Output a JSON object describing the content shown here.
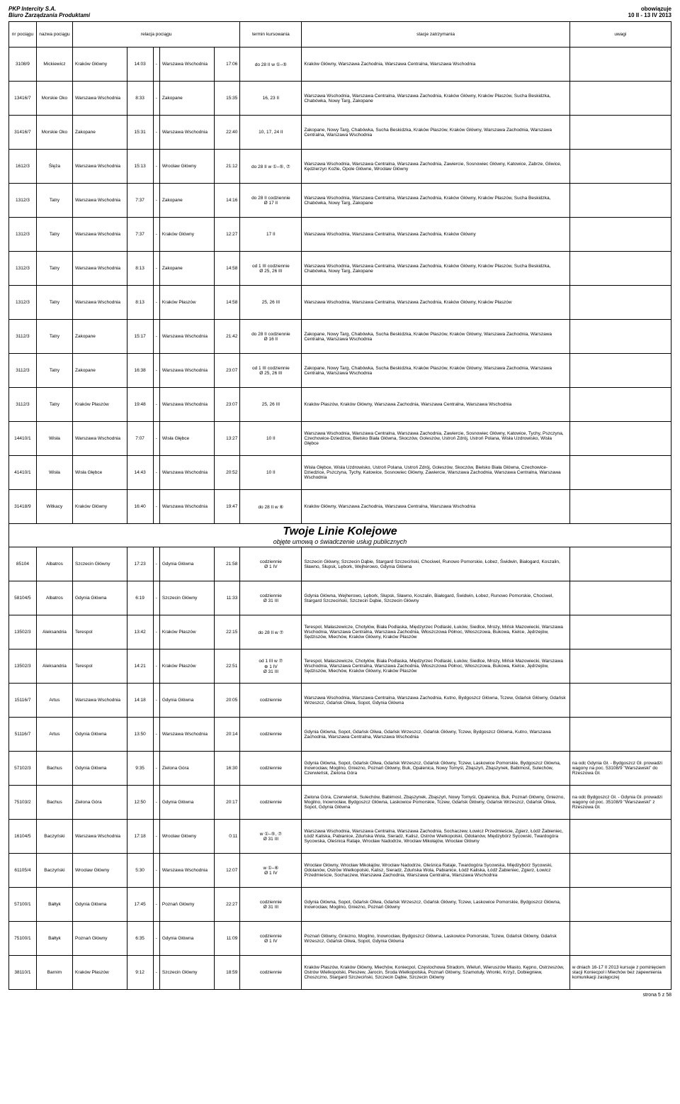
{
  "header": {
    "company": "PKP Intercity S.A.",
    "dept": "Biuro Zarządzania Produktami",
    "obow": "obowiązuje",
    "period": "10 II - 13 IV 2013"
  },
  "columns": {
    "nr": "nr pociągu",
    "name": "nazwa pociągu",
    "relacja": "relacja pociągu",
    "termin": "termin kursowania",
    "stacje": "stacje zatrzymania",
    "uwagi": "uwagi"
  },
  "section": {
    "title": "Twoje Linie Kolejowe",
    "sub": "objęte umową o świadczenie usług publicznych"
  },
  "rows1": [
    {
      "nr": "3108/9",
      "name": "Mickiewicz",
      "from": "Kraków Główny",
      "dep": "14:03",
      "to": "Warszawa Wschodnia",
      "arr": "17:06",
      "term": "do 28 II w ①–⑤",
      "stacje": "Kraków Główny, Warszawa Zachodnia, Warszawa Centralna, Warszawa Wschodnia",
      "uwagi": ""
    },
    {
      "nr": "13416/7",
      "name": "Morskie Oko",
      "from": "Warszawa Wschodnia",
      "dep": "8:33",
      "to": "Zakopane",
      "arr": "15:35",
      "term": "16, 23 II",
      "stacje": "Warszawa Wschodnia, Warszawa Centralna, Warszawa Zachodnia, Kraków Główny, Kraków Płaszów, Sucha Beskidzka, Chabówka, Nowy Targ, Zakopane",
      "uwagi": ""
    },
    {
      "nr": "31416/7",
      "name": "Morskie Oko",
      "from": "Zakopane",
      "dep": "15:31",
      "to": "Warszawa Wschodnia",
      "arr": "22:40",
      "term": "10, 17, 24 II",
      "stacje": "Zakopane, Nowy Targ, Chabówka, Sucha Beskidzka, Kraków Płaszów, Kraków Główny, Warszawa Zachodnia, Warszawa Centralna, Warszawa Wschodnia",
      "uwagi": ""
    },
    {
      "nr": "1612/3",
      "name": "Ślęża",
      "from": "Warszawa Wschodnia",
      "dep": "15:13",
      "to": "Wrocław Główny",
      "arr": "21:12",
      "term": "do 28 II w ①–⑤, ⑦",
      "stacje": "Warszawa Wschodnia, Warszawa Centralna, Warszawa Zachodnia, Zawiercie, Sosnowiec Główny, Katowice, Zabrze, Gliwice, Kędzierzyn Koźle, Opole Główne, Wrocław Główny",
      "uwagi": ""
    },
    {
      "nr": "1312/3",
      "name": "Tatry",
      "from": "Warszawa Wschodnia",
      "dep": "7:37",
      "to": "Zakopane",
      "arr": "14:16",
      "term": "do 28 II codziennie\nØ 17 II",
      "stacje": "Warszawa Wschodnia, Warszawa Centralna, Warszawa Zachodnia, Kraków Główny, Kraków Płaszów, Sucha Beskidzka, Chabówka, Nowy Targ, Zakopane",
      "uwagi": ""
    },
    {
      "nr": "1312/3",
      "name": "Tatry",
      "from": "Warszawa Wschodnia",
      "dep": "7:37",
      "to": "Kraków Główny",
      "arr": "12:27",
      "term": "17 II",
      "stacje": "Warszawa Wschodnia, Warszawa Centralna, Warszawa Zachodnia, Kraków Główny",
      "uwagi": ""
    },
    {
      "nr": "1312/3",
      "name": "Tatry",
      "from": "Warszawa Wschodnia",
      "dep": "8:13",
      "to": "Zakopane",
      "arr": "14:58",
      "term": "od 1 III codziennie\nØ 25, 26 III",
      "stacje": "Warszawa Wschodnia, Warszawa Centralna, Warszawa Zachodnia, Kraków Główny, Kraków Płaszów, Sucha Beskidzka, Chabówka, Nowy Targ, Zakopane",
      "uwagi": ""
    },
    {
      "nr": "1312/3",
      "name": "Tatry",
      "from": "Warszawa Wschodnia",
      "dep": "8:13",
      "to": "Kraków Płaszów",
      "arr": "14:58",
      "term": "25, 26 III",
      "stacje": "Warszawa Wschodnia, Warszawa Centralna, Warszawa Zachodnia, Kraków Główny, Kraków Płaszów",
      "uwagi": ""
    },
    {
      "nr": "3112/3",
      "name": "Tatry",
      "from": "Zakopane",
      "dep": "15:17",
      "to": "Warszawa Wschodnia",
      "arr": "21:42",
      "term": "do 28 II codziennie\nØ 16 II",
      "stacje": "Zakopane, Nowy Targ, Chabówka, Sucha Beskidzka, Kraków Płaszów, Kraków Główny, Warszawa Zachodnia, Warszawa Centralna, Warszawa Wschodnia",
      "uwagi": ""
    },
    {
      "nr": "3112/3",
      "name": "Tatry",
      "from": "Zakopane",
      "dep": "16:38",
      "to": "Warszawa Wschodnia",
      "arr": "23:07",
      "term": "od 1 III codziennie\nØ 25, 26 III",
      "stacje": "Zakopane, Nowy Targ, Chabówka, Sucha Beskidzka, Kraków Płaszów, Kraków Główny, Warszawa Zachodnia, Warszawa Centralna, Warszawa Wschodnia",
      "uwagi": ""
    },
    {
      "nr": "3112/3",
      "name": "Tatry",
      "from": "Kraków Płaszów",
      "dep": "19:48",
      "to": "Warszawa Wschodnia",
      "arr": "23:07",
      "term": "25, 26 III",
      "stacje": "Kraków Płaszów, Kraków Główny, Warszawa Zachodnia, Warszawa Centralna, Warszawa Wschodnia",
      "uwagi": ""
    },
    {
      "nr": "14410/1",
      "name": "Wisła",
      "from": "Warszawa Wschodnia",
      "dep": "7:07",
      "to": "Wisła Głębce",
      "arr": "13:27",
      "term": "10 II",
      "stacje": "Warszawa Wschodnia, Warszawa Centralna, Warszawa Zachodnia, Zawiercie, Sosnowiec Główny, Katowice, Tychy, Pszczyna, Czechowice-Dziedzice, Bielsko Biała Główna, Skoczów, Goleszów, Ustroń Zdrój, Ustroń Polana, Wisła Uzdrowisko, Wisła Głębce",
      "uwagi": ""
    },
    {
      "nr": "41410/1",
      "name": "Wisła",
      "from": "Wisła Głębce",
      "dep": "14:43",
      "to": "Warszawa Wschodnia",
      "arr": "20:52",
      "term": "10 II",
      "stacje": "Wisła Głębce, Wisła Uzdrowisko, Ustroń Polana, Ustroń Zdrój, Goleszów, Skoczów, Bielsko Biała Główna, Czechowice-Dziedzice, Pszczyna, Tychy, Katowice, Sosnowiec Główny, Zawiercie, Warszawa Zachodnia, Warszawa Centralna, Warszawa Wschodnia",
      "uwagi": ""
    },
    {
      "nr": "31418/9",
      "name": "Witkacy",
      "from": "Kraków Główny",
      "dep": "16:40",
      "to": "Warszawa Wschodnia",
      "arr": "19:47",
      "term": "do 28 II w ⑥",
      "stacje": "Kraków Główny, Warszawa Zachodnia, Warszawa Centralna, Warszawa Wschodnia",
      "uwagi": ""
    }
  ],
  "rows2": [
    {
      "nr": "85104",
      "name": "Albatros",
      "from": "Szczecin Główny",
      "dep": "17:23",
      "to": "Gdynia Główna",
      "arr": "21:58",
      "term": "codziennie\nØ 1 IV",
      "stacje": "Szczecin Główny, Szczecin Dąbie, Stargard Szczeciński, Chociwel, Runowo Pomorskie, Łobez, Świdwin, Białogard, Koszalin, Sławno, Słupsk, Lębork, Wejherowo, Gdynia Główna",
      "uwagi": ""
    },
    {
      "nr": "58104/5",
      "name": "Albatros",
      "from": "Gdynia Główna",
      "dep": "6:19",
      "to": "Szczecin Główny",
      "arr": "11:33",
      "term": "codziennie\nØ 31 III",
      "stacje": "Gdynia Główna, Wejherowo, Lębork, Słupsk, Sławno, Koszalin, Białogard, Świdwin, Łobez, Runowo Pomorskie, Chociwel, Stargard Szczeciński, Szczecin Dąbie, Szczecin Główny",
      "uwagi": ""
    },
    {
      "nr": "13502/3",
      "name": "Aleksandria",
      "from": "Terespol",
      "dep": "13:42",
      "to": "Kraków Płaszów",
      "arr": "22:15",
      "term": "do 28 II w ⑦",
      "stacje": "Terespol, Małaszewicze, Chotyłów, Biała Podlaska, Międzyrzec Podlaski, Łuków, Siedlce, Mrozy, Mińsk Mazowiecki, Warszawa Wschodnia, Warszawa Centralna, Warszawa Zachodnia, Włoszczowa Północ, Włoszczowa, Bukowa, Kielce, Jędrzejów, Sędziszów, Miechów, Kraków Główny, Kraków Płaszów",
      "uwagi": ""
    },
    {
      "nr": "13502/3",
      "name": "Aleksandria",
      "from": "Terespol",
      "dep": "14:21",
      "to": "Kraków Płaszów",
      "arr": "22:51",
      "term": "od 1 III w ⑦\n⊕ 1 IV\nØ 31 III",
      "stacje": "Terespol, Małaszewicze, Chotyłów, Biała Podlaska, Międzyrzec Podlaski, Łuków, Siedlce, Mrozy, Mińsk Mazowiecki, Warszawa Wschodnia, Warszawa Centralna, Warszawa Zachodnia, Włoszczowa Północ, Włoszczowa, Bukowa, Kielce, Jędrzejów, Sędziszów, Miechów, Kraków Główny, Kraków Płaszów",
      "uwagi": ""
    },
    {
      "nr": "15116/7",
      "name": "Artus",
      "from": "Warszawa Wschodnia",
      "dep": "14:18",
      "to": "Gdynia Główna",
      "arr": "20:05",
      "term": "codziennie",
      "stacje": "Warszawa Wschodnia, Warszawa Centralna, Warszawa Zachodnia, Kutno, Bydgoszcz Główna, Tczew, Gdańsk Główny, Gdańsk Wrzeszcz, Gdańsk Oliwa, Sopot, Gdynia Główna",
      "uwagi": ""
    },
    {
      "nr": "51116/7",
      "name": "Artus",
      "from": "Gdynia Główna",
      "dep": "13:50",
      "to": "Warszawa Wschodnia",
      "arr": "20:14",
      "term": "codziennie",
      "stacje": "Gdynia Główna, Sopot, Gdańsk Oliwa, Gdańsk Wrzeszcz, Gdańsk Główny, Tczew, Bydgoszcz Główna, Kutno, Warszawa Zachodnia, Warszawa Centralna, Warszawa Wschodnia",
      "uwagi": ""
    },
    {
      "nr": "57102/3",
      "name": "Bachus",
      "from": "Gdynia Główna",
      "dep": "9:35",
      "to": "Zielona Góra",
      "arr": "16:30",
      "term": "codziennie",
      "stacje": "Gdynia Główna, Sopot, Gdańsk Oliwa, Gdańsk Wrzeszcz, Gdańsk Główny, Tczew, Laskowice Pomorskie, Bydgoszcz Główna, Inowrocław, Mogilno, Gniezno, Poznań Główny, Buk, Opalenica, Nowy Tomyśl, Zbąszyń, Zbąszynek, Babimost, Sulechów, Czerwieńsk, Zielona Góra",
      "uwagi": "na odc Gdynia Gł. - Bydgoszcz Gł. prowadzi wagony na poc. 53108/9 \"Warszawski\" do Rzeszowa Gł."
    },
    {
      "nr": "75103/2",
      "name": "Bachus",
      "from": "Zielona Góra",
      "dep": "12:50",
      "to": "Gdynia Główna",
      "arr": "20:17",
      "term": "codziennie",
      "stacje": "Zielona Góra, Czerwieńsk, Sulechów, Babimost, Zbąszynek, Zbąszyń, Nowy Tomyśl, Opalenica, Buk, Poznań Główny, Gniezno, Mogilno, Inowrocław, Bydgoszcz Główna, Laskowice Pomorskie, Tczew, Gdańsk Główny, Gdańsk Wrzeszcz, Gdańsk Oliwa, Sopot, Gdynia Główna",
      "uwagi": "na odc Bydgoszcz Gł. - Gdynia Gł. prowadzi wagony od poc. 35108/9 \"Warszawski\" z Rzeszowa Gł."
    },
    {
      "nr": "16104/5",
      "name": "Baczyński",
      "from": "Warszawa Wschodnia",
      "dep": "17:18",
      "to": "Wrocław Główny",
      "arr": "0:11",
      "term": "w ①–⑤, ⑦\nØ 31 III",
      "stacje": "Warszawa Wschodnia, Warszawa Centralna, Warszawa Zachodnia, Sochaczew, Łowicz Przedmieście, Zgierz, Łódź Żabieniec, Łódź Kaliska, Pabianice, Zduńska Wola, Sieradz, Kalisz, Ostrów Wielkopolski, Odolanów, Międzybórz Sycowski, Twardogóra Sycowska, Oleśnica Rataje, Wrocław Nadodrze, Wrocław Mikołajów, Wrocław Główny",
      "uwagi": ""
    },
    {
      "nr": "61105/4",
      "name": "Baczyński",
      "from": "Wrocław Główny",
      "dep": "5:30",
      "to": "Warszawa Wschodnia",
      "arr": "12:07",
      "term": "w ①–⑥\nØ 1 IV",
      "stacje": "Wrocław Główny, Wrocław Mikołajów, Wrocław Nadodrze, Oleśnica Rataje, Twardogóra Sycowska, Międzybórz Sycowski, Odolanów, Ostrów Wielkopolski, Kalisz, Sieradz, Zduńska Wola, Pabianice, Łódź Kaliska, Łódź Żabieniec, Zgierz, Łowicz Przedmieście, Sochaczew, Warszawa Zachodnia, Warszawa Centralna, Warszawa Wschodnia",
      "uwagi": ""
    },
    {
      "nr": "57100/1",
      "name": "Bałtyk",
      "from": "Gdynia Główna",
      "dep": "17:45",
      "to": "Poznań Główny",
      "arr": "22:27",
      "term": "codziennie\nØ 31 III",
      "stacje": "Gdynia Główna, Sopot, Gdańsk Oliwa, Gdańsk Wrzeszcz, Gdańsk Główny, Tczew, Laskowice Pomorskie, Bydgoszcz Główna, Inowrocław, Mogilno, Gniezno, Poznań Główny",
      "uwagi": ""
    },
    {
      "nr": "75100/1",
      "name": "Bałtyk",
      "from": "Poznań Główny",
      "dep": "6:35",
      "to": "Gdynia Główna",
      "arr": "11:09",
      "term": "codziennie\nØ 1 IV",
      "stacje": "Poznań Główny, Gniezno, Mogilno, Inowrocław, Bydgoszcz Główna, Laskowice Pomorskie, Tczew, Gdańsk Główny, Gdańsk Wrzeszcz, Gdańsk Oliwa, Sopot, Gdynia Główna",
      "uwagi": ""
    },
    {
      "nr": "38110/1",
      "name": "Barnim",
      "from": "Kraków Płaszów",
      "dep": "9:12",
      "to": "Szczecin Główny",
      "arr": "18:59",
      "term": "codziennie",
      "stacje": "Kraków Płaszów, Kraków Główny, Miechów, Koniecpol, Częstochowa Stradom, Wieluń, Wieruszów Miasto, Kępno, Ostrzeszów, Ostrów Wielkopolski, Pleszew, Jarocin, Środa Wielkopolska, Poznań Główny, Szamotuły, Wronki, Krzyż, Dobiegniew, Choszczno, Stargard Szczeciński, Szczecin Dąbie, Szczecin Główny",
      "uwagi": "w dniach 16-17 II 2013 kursuje z pominięciem stacji Koniecpol i Miechów bez zapewnienia komunikacji zastępczej"
    }
  ],
  "footer": "strona 5 z 58"
}
